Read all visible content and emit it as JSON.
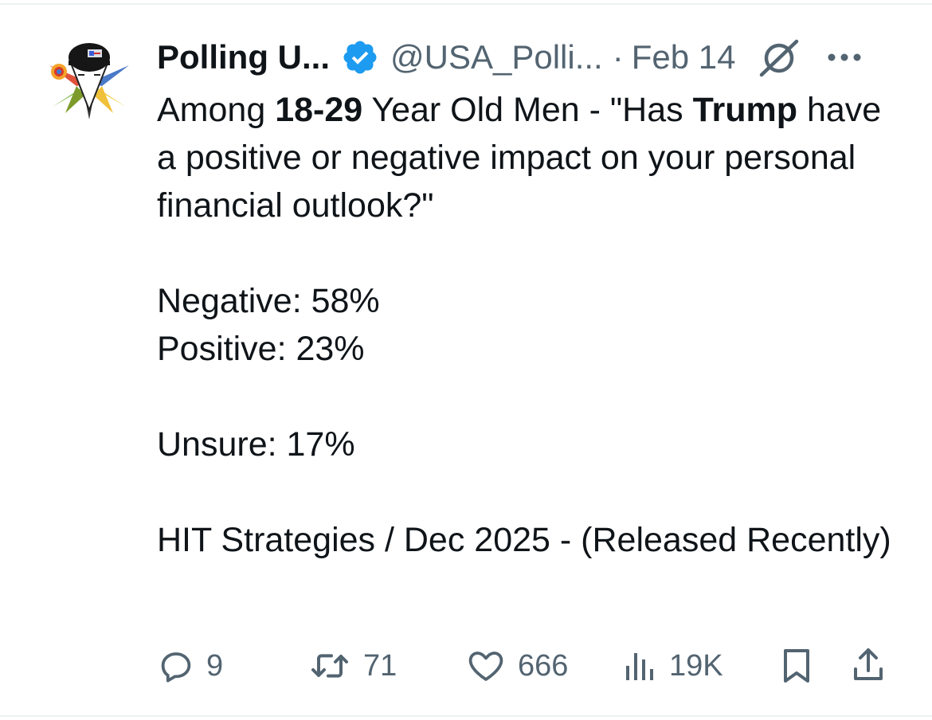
{
  "tweet": {
    "display_name": "Polling U...",
    "handle": "@USA_Polli...",
    "separator": "·",
    "date": "Feb 14",
    "text": {
      "line1_a": "Among ",
      "line1_b": "18-29",
      "line1_c": " Year Old Men - \"Has ",
      "line1_d": "Trump",
      "line1_e": " have a positive or negative impact on your personal financial outlook?\"",
      "negative": "Negative: 58%",
      "positive": "Positive: 23%",
      "unsure": "Unsure: 17%",
      "source": "HIT Strategies / Dec 2025 - (Released Recently)"
    }
  },
  "actions": {
    "replies": "9",
    "reposts": "71",
    "likes": "666",
    "views": "19K"
  },
  "icons": {
    "verified": "verified-badge-icon",
    "grok": "grok-icon",
    "more": "more-icon",
    "reply": "reply-icon",
    "repost": "repost-icon",
    "like": "heart-icon",
    "views": "views-icon",
    "bookmark": "bookmark-icon",
    "share": "share-icon"
  },
  "colors": {
    "text": "#0f1419",
    "secondary": "#536471",
    "verified": "#1d9bf0"
  }
}
